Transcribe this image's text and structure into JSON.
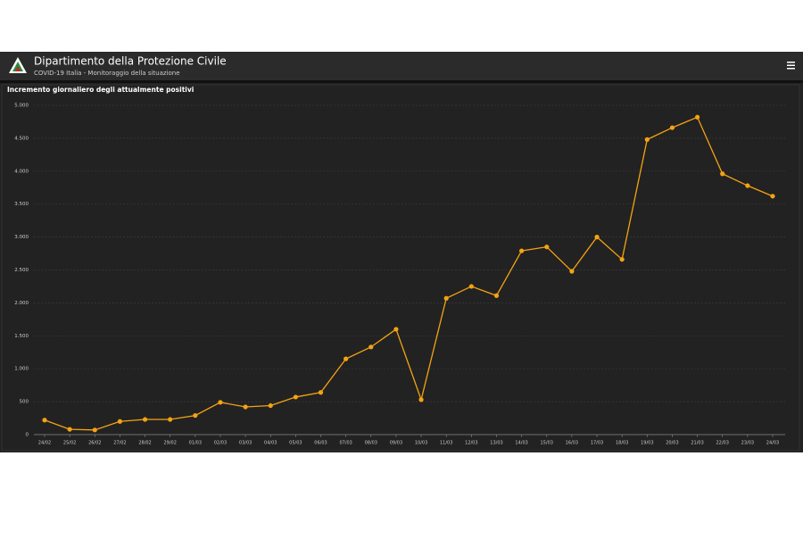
{
  "header": {
    "title": "Dipartimento della Protezione Civile",
    "subtitle": "COVID-19 Italia - Monitoraggio della situazione"
  },
  "chart_data": {
    "type": "line",
    "title": "Incremento giornaliero degli attualmente positivi",
    "categories": [
      "24/02",
      "25/02",
      "26/02",
      "27/02",
      "28/02",
      "29/02",
      "01/03",
      "02/03",
      "03/03",
      "04/03",
      "05/03",
      "06/03",
      "07/03",
      "08/03",
      "09/03",
      "10/03",
      "11/03",
      "12/03",
      "13/03",
      "14/03",
      "15/03",
      "16/03",
      "17/03",
      "18/03",
      "19/03",
      "20/03",
      "21/03",
      "22/03",
      "23/03",
      "24/03"
    ],
    "values": [
      220,
      80,
      70,
      200,
      230,
      230,
      290,
      490,
      420,
      440,
      570,
      640,
      1150,
      1330,
      1600,
      530,
      2070,
      2250,
      2110,
      2790,
      2850,
      2480,
      3000,
      2660,
      4480,
      4660,
      4820,
      3960,
      3780,
      3620
    ],
    "color": "#f5a312",
    "ylim": [
      0,
      5000
    ],
    "yticks": [
      0,
      500,
      {
        "value": 1000,
        "label": "1.000"
      },
      {
        "value": 1500,
        "label": "1.500"
      },
      {
        "value": 2000,
        "label": "2.000"
      },
      {
        "value": 2500,
        "label": "2.500"
      },
      {
        "value": 3000,
        "label": "3.000"
      },
      {
        "value": 3500,
        "label": "3.500"
      },
      {
        "value": 4000,
        "label": "4.000"
      },
      {
        "value": 4500,
        "label": "4.500"
      },
      {
        "value": 5000,
        "label": "5.000"
      }
    ],
    "grid": true
  }
}
